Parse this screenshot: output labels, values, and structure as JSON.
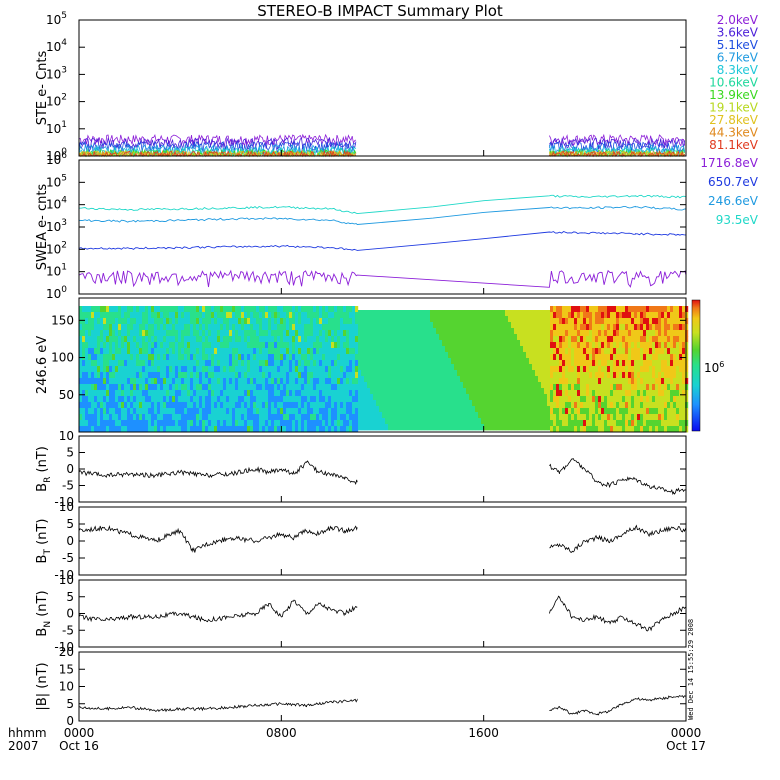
{
  "title": "STEREO-B IMPACT Summary Plot",
  "stamp": "Wed Dec 14 15:55:29 2008",
  "x_axis": {
    "header_line1": "hhmm",
    "header_line2": "2007",
    "ticks": [
      {
        "hour": 0,
        "line1": "0000",
        "line2": "Oct 16"
      },
      {
        "hour": 8,
        "line1": "0800",
        "line2": ""
      },
      {
        "hour": 16,
        "line1": "1600",
        "line2": ""
      },
      {
        "hour": 24,
        "line1": "0000",
        "line2": "Oct 17"
      }
    ]
  },
  "ste_legend": [
    {
      "label": "2.0keV",
      "color": "#8c1fd8"
    },
    {
      "label": "3.6keV",
      "color": "#4b1fd8"
    },
    {
      "label": "5.1keV",
      "color": "#1f4ee0"
    },
    {
      "label": "6.7keV",
      "color": "#1f9ae0"
    },
    {
      "label": "8.3keV",
      "color": "#1fc8d8"
    },
    {
      "label": "10.6keV",
      "color": "#1fd89c"
    },
    {
      "label": "13.9keV",
      "color": "#3ad81f"
    },
    {
      "label": "19.1keV",
      "color": "#b7d81f"
    },
    {
      "label": "27.8keV",
      "color": "#e0c21f"
    },
    {
      "label": "44.3keV",
      "color": "#e08a1f"
    },
    {
      "label": "81.1keV",
      "color": "#e03a1f"
    }
  ],
  "swea_legend": [
    {
      "label": "1716.8eV",
      "color": "#8c1fd8"
    },
    {
      "label": "650.7eV",
      "color": "#1f3ae0"
    },
    {
      "label": "246.6eV",
      "color": "#1f9ae0"
    },
    {
      "label": "93.5eV",
      "color": "#1fd8c8"
    }
  ],
  "chart_data": [
    {
      "type": "line",
      "panel": "ste",
      "ylabel": "STE e- Cnts",
      "yscale": "log",
      "ylim": [
        1,
        100000
      ],
      "yticks": [
        {
          "base": "10",
          "exp": "0"
        },
        {
          "base": "10",
          "exp": "1"
        },
        {
          "base": "10",
          "exp": "2"
        },
        {
          "base": "10",
          "exp": "3"
        },
        {
          "base": "10",
          "exp": "4"
        },
        {
          "base": "10",
          "exp": "5"
        }
      ],
      "data_intervals_hours": [
        [
          0,
          11.0
        ],
        [
          18.6,
          24
        ]
      ],
      "series_levels": [
        {
          "name": "2.0keV",
          "typical": 4
        },
        {
          "name": "3.6keV",
          "typical": 3
        },
        {
          "name": "5.1keV",
          "typical": 2.2
        },
        {
          "name": "6.7keV",
          "typical": 1.7
        },
        {
          "name": "8.3keV",
          "typical": 1.4
        },
        {
          "name": "10.6keV",
          "typical": 1.2
        },
        {
          "name": "13.9keV",
          "typical": 1.1
        },
        {
          "name": "19.1keV",
          "typical": 1.05
        },
        {
          "name": "27.8keV",
          "typical": 1.0
        },
        {
          "name": "44.3keV",
          "typical": 1.0
        },
        {
          "name": "81.1keV",
          "typical": 1.0
        }
      ]
    },
    {
      "type": "line",
      "panel": "swea",
      "ylabel": "SWEA e- cnts",
      "yscale": "log",
      "ylim": [
        1,
        1000000
      ],
      "yticks": [
        {
          "base": "10",
          "exp": "0"
        },
        {
          "base": "10",
          "exp": "1"
        },
        {
          "base": "10",
          "exp": "2"
        },
        {
          "base": "10",
          "exp": "3"
        },
        {
          "base": "10",
          "exp": "4"
        },
        {
          "base": "10",
          "exp": "5"
        },
        {
          "base": "10",
          "exp": "6"
        }
      ],
      "series": [
        {
          "name": "93.5eV",
          "x": [
            0,
            2,
            4,
            6,
            8,
            10,
            11,
            14,
            16,
            18.6,
            20,
            22,
            24
          ],
          "y": [
            7000,
            6000,
            6500,
            7200,
            7800,
            6500,
            4000,
            8000,
            15000,
            25000,
            22000,
            25000,
            22000
          ]
        },
        {
          "name": "246.6eV",
          "x": [
            0,
            2,
            4,
            6,
            8,
            10,
            11,
            14,
            16,
            18.6,
            20,
            22,
            24
          ],
          "y": [
            2000,
            1800,
            2000,
            2300,
            2400,
            2000,
            1300,
            2500,
            4500,
            7500,
            7000,
            8000,
            6000
          ]
        },
        {
          "name": "650.7eV",
          "x": [
            0,
            2,
            4,
            6,
            8,
            10,
            11,
            14,
            16,
            18.6,
            20,
            22,
            24
          ],
          "y": [
            110,
            110,
            120,
            130,
            140,
            120,
            90,
            180,
            300,
            600,
            550,
            500,
            450
          ]
        },
        {
          "name": "1716.8eV",
          "x": [
            0,
            11,
            18.6,
            24
          ],
          "y": [
            7,
            7,
            2,
            7
          ]
        }
      ]
    },
    {
      "type": "heatmap",
      "panel": "pad",
      "ylabel": "246.6 eV",
      "ylim": [
        0,
        180
      ],
      "yticks": [
        50,
        100,
        150
      ],
      "colorbar_tick": {
        "base": "10",
        "exp": "6"
      }
    },
    {
      "type": "line",
      "panel": "br",
      "ylabel_main": "B",
      "ylabel_sub": "R",
      "ylabel_unit": " (nT)",
      "ylim": [
        -10,
        10
      ],
      "yticks": [
        -10,
        -5,
        0,
        5,
        10
      ],
      "segments": [
        {
          "x": [
            0,
            1,
            2,
            3,
            4,
            5,
            6,
            7,
            7.5,
            8,
            8.5,
            9,
            9.5,
            10,
            10.5,
            11
          ],
          "y": [
            -1,
            -2,
            -1.5,
            -2,
            -1,
            -2,
            -1.5,
            0,
            -1,
            0,
            -1.5,
            2,
            -1,
            -1.5,
            -3,
            -4
          ]
        },
        {
          "x": [
            18.6,
            19,
            19.5,
            20,
            20.5,
            21,
            21.5,
            22,
            22.5,
            23,
            23.5,
            24
          ],
          "y": [
            1,
            -1,
            3,
            0,
            -4,
            -5,
            -3,
            -3,
            -5,
            -6,
            -7,
            -6
          ]
        }
      ]
    },
    {
      "type": "line",
      "panel": "bt",
      "ylabel_main": "B",
      "ylabel_sub": "T",
      "ylabel_unit": " (nT)",
      "ylim": [
        -10,
        10
      ],
      "yticks": [
        -10,
        -5,
        0,
        5,
        10
      ],
      "segments": [
        {
          "x": [
            0,
            1,
            2,
            3,
            4,
            4.5,
            5,
            6,
            7,
            8,
            8.5,
            9,
            9.5,
            10,
            10.5,
            11
          ],
          "y": [
            3,
            4,
            2,
            0,
            3,
            -3,
            -1,
            1,
            0,
            2,
            1,
            3,
            2,
            4,
            3,
            4
          ]
        },
        {
          "x": [
            18.6,
            19,
            19.5,
            20,
            20.5,
            21,
            21.5,
            22,
            22.5,
            23,
            23.5,
            24
          ],
          "y": [
            -2,
            -1,
            -3,
            0,
            1,
            0,
            2,
            4,
            2,
            3,
            4,
            3
          ]
        }
      ]
    },
    {
      "type": "line",
      "panel": "bn",
      "ylabel_main": "B",
      "ylabel_sub": "N",
      "ylabel_unit": " (nT)",
      "ylim": [
        -10,
        10
      ],
      "yticks": [
        -10,
        -5,
        0,
        5,
        10
      ],
      "segments": [
        {
          "x": [
            0,
            1,
            2,
            3,
            4,
            5,
            6,
            7,
            7.5,
            8,
            8.5,
            9,
            9.5,
            10,
            10.5,
            11
          ],
          "y": [
            -1,
            -2,
            -1,
            -1,
            0,
            -2,
            -1,
            0,
            3,
            -1,
            4,
            0,
            3,
            1,
            0,
            2
          ]
        },
        {
          "x": [
            18.6,
            19,
            19.5,
            20,
            20.5,
            21,
            21.5,
            22,
            22.5,
            23,
            23.5,
            24
          ],
          "y": [
            0,
            5,
            -1,
            -2,
            -1,
            -3,
            -1,
            -3,
            -5,
            -2,
            0,
            2
          ]
        }
      ]
    },
    {
      "type": "line",
      "panel": "bmag",
      "ylabel_main": "|B| (nT)",
      "ylabel_sub": "",
      "ylabel_unit": "",
      "ylim": [
        0,
        20
      ],
      "yticks": [
        0,
        5,
        10,
        15,
        20
      ],
      "segments": [
        {
          "x": [
            0,
            1,
            2,
            3,
            4,
            5,
            6,
            7,
            8,
            9,
            10,
            11
          ],
          "y": [
            4,
            3.5,
            4,
            3,
            3.5,
            3.5,
            4,
            4.5,
            5,
            4.5,
            5.5,
            6
          ]
        },
        {
          "x": [
            18.6,
            19,
            19.5,
            20,
            20.5,
            21,
            21.5,
            22,
            22.5,
            23,
            23.5,
            24
          ],
          "y": [
            3,
            4,
            2,
            3,
            2,
            3,
            5,
            6.5,
            6,
            6.5,
            7,
            7
          ]
        }
      ]
    }
  ]
}
